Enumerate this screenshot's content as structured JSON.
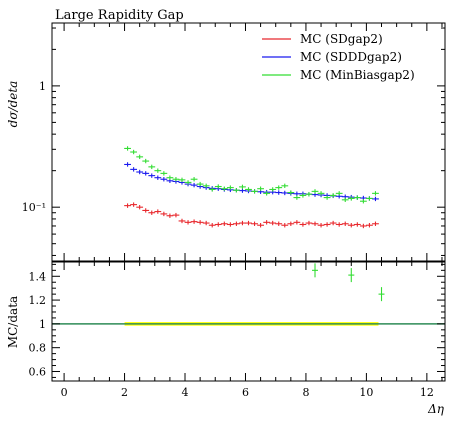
{
  "chart_data": [
    {
      "type": "line",
      "title": "Large Rapidity Gap",
      "xlabel": "Δη",
      "ylabel": "dσ/deta",
      "yscale": "log",
      "xlim": [
        -0.4,
        12.6
      ],
      "ylim": [
        0.036,
        3.3
      ],
      "y_ticks": [
        {
          "value": 0.1,
          "label": "10⁻¹"
        },
        {
          "value": 1,
          "label": "1"
        }
      ],
      "legend_position": "top-right",
      "series": [
        {
          "name": "MC (SDgap2)",
          "color": "#e8282d",
          "x": [
            2.1,
            2.3,
            2.5,
            2.7,
            2.9,
            3.1,
            3.3,
            3.5,
            3.7,
            3.9,
            4.1,
            4.3,
            4.5,
            4.7,
            4.9,
            5.1,
            5.3,
            5.5,
            5.7,
            5.9,
            6.1,
            6.3,
            6.5,
            6.7,
            6.9,
            7.1,
            7.3,
            7.5,
            7.7,
            7.9,
            8.1,
            8.3,
            8.5,
            8.7,
            8.9,
            9.1,
            9.3,
            9.5,
            9.7,
            9.9,
            10.1,
            10.3
          ],
          "y": [
            0.103,
            0.105,
            0.1,
            0.094,
            0.09,
            0.092,
            0.088,
            0.085,
            0.086,
            0.077,
            0.075,
            0.076,
            0.075,
            0.074,
            0.071,
            0.072,
            0.073,
            0.072,
            0.073,
            0.074,
            0.074,
            0.073,
            0.071,
            0.075,
            0.074,
            0.073,
            0.071,
            0.073,
            0.075,
            0.072,
            0.074,
            0.073,
            0.071,
            0.072,
            0.074,
            0.072,
            0.073,
            0.071,
            0.072,
            0.07,
            0.071,
            0.073
          ]
        },
        {
          "name": "MC (SDDDgap2)",
          "color": "#1a1aef",
          "x": [
            2.1,
            2.3,
            2.5,
            2.7,
            2.9,
            3.1,
            3.3,
            3.5,
            3.7,
            3.9,
            4.1,
            4.3,
            4.5,
            4.7,
            4.9,
            5.1,
            5.3,
            5.5,
            5.7,
            5.9,
            6.1,
            6.3,
            6.5,
            6.7,
            6.9,
            7.1,
            7.3,
            7.5,
            7.7,
            7.9,
            8.1,
            8.3,
            8.5,
            8.7,
            8.9,
            9.1,
            9.3,
            9.5,
            9.7,
            9.9,
            10.1,
            10.3
          ],
          "y": [
            0.225,
            0.205,
            0.195,
            0.19,
            0.182,
            0.175,
            0.17,
            0.165,
            0.163,
            0.16,
            0.155,
            0.152,
            0.148,
            0.145,
            0.143,
            0.142,
            0.14,
            0.139,
            0.138,
            0.137,
            0.136,
            0.135,
            0.134,
            0.133,
            0.133,
            0.132,
            0.131,
            0.13,
            0.129,
            0.129,
            0.128,
            0.127,
            0.126,
            0.125,
            0.124,
            0.123,
            0.122,
            0.121,
            0.12,
            0.119,
            0.118,
            0.117
          ]
        },
        {
          "name": "MC (MinBiasgap2)",
          "color": "#33dd33",
          "x": [
            2.1,
            2.3,
            2.5,
            2.7,
            2.9,
            3.1,
            3.3,
            3.5,
            3.7,
            3.9,
            4.1,
            4.3,
            4.5,
            4.7,
            4.9,
            5.1,
            5.3,
            5.5,
            5.7,
            5.9,
            6.1,
            6.3,
            6.5,
            6.7,
            6.9,
            7.1,
            7.3,
            7.5,
            7.7,
            7.9,
            8.1,
            8.3,
            8.5,
            8.7,
            8.9,
            9.1,
            9.3,
            9.5,
            9.7,
            9.9,
            10.1,
            10.3
          ],
          "y": [
            0.305,
            0.285,
            0.26,
            0.24,
            0.215,
            0.2,
            0.19,
            0.175,
            0.17,
            0.168,
            0.16,
            0.17,
            0.155,
            0.15,
            0.14,
            0.148,
            0.142,
            0.145,
            0.138,
            0.147,
            0.14,
            0.135,
            0.142,
            0.13,
            0.14,
            0.145,
            0.15,
            0.132,
            0.12,
            0.125,
            0.128,
            0.135,
            0.13,
            0.12,
            0.125,
            0.13,
            0.115,
            0.118,
            0.12,
            0.112,
            0.118,
            0.13
          ]
        }
      ]
    },
    {
      "type": "line",
      "xlabel": "Δη",
      "ylabel": "MC/data",
      "xlim": [
        -0.4,
        12.6
      ],
      "ylim": [
        0.52,
        1.52
      ],
      "x_ticks": [
        0,
        2,
        4,
        6,
        8,
        10,
        12
      ],
      "y_ticks": [
        0.6,
        0.8,
        1,
        1.2,
        1.4
      ],
      "reference_line": {
        "y": 1,
        "color": "#2e8b57"
      },
      "band": {
        "x_range": [
          2.0,
          10.4
        ],
        "y_range": [
          0.985,
          1.015
        ],
        "color": "#ffff00"
      },
      "series": [
        {
          "name": "MC (MinBiasgap2)",
          "color": "#33dd33",
          "x": [
            8.3,
            9.5,
            10.5
          ],
          "y": [
            1.45,
            1.41,
            1.25
          ]
        }
      ]
    }
  ]
}
